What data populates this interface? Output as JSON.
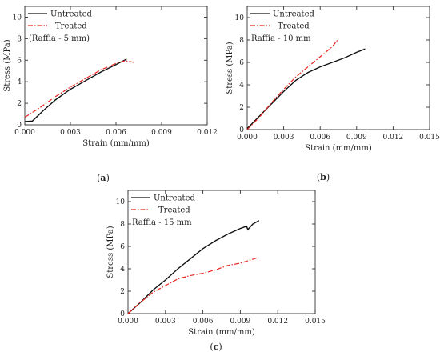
{
  "chart_data": [
    {
      "type": "line",
      "panel_label": "(a)",
      "xlabel": "Strain (mm/mm)",
      "ylabel": "Stress (MPa)",
      "xlim": [
        0,
        0.012
      ],
      "ylim": [
        0,
        11
      ],
      "xticks": [
        "0.000",
        "0.003",
        "0.006",
        "0.009",
        "0.012"
      ],
      "xtick_values": [
        0,
        0.003,
        0.006,
        0.009,
        0.012
      ],
      "yticks": [
        "0",
        "2",
        "4",
        "6",
        "8",
        "10"
      ],
      "ytick_values": [
        0,
        2,
        4,
        6,
        8,
        10
      ],
      "annotation": "(Raffia - 5 mm)",
      "legend_position": "top-left",
      "series": [
        {
          "name": "Untreated",
          "color": "#111111",
          "style": "solid",
          "points": [
            [
              0,
              0.3
            ],
            [
              0.0005,
              0.35
            ],
            [
              0.0012,
              1.3
            ],
            [
              0.002,
              2.3
            ],
            [
              0.003,
              3.3
            ],
            [
              0.004,
              4.1
            ],
            [
              0.005,
              4.9
            ],
            [
              0.006,
              5.6
            ],
            [
              0.0067,
              6.1
            ]
          ]
        },
        {
          "name": "Treated",
          "color": "#e8231d",
          "style": "dash-dot",
          "points": [
            [
              0,
              0.7
            ],
            [
              0.001,
              1.6
            ],
            [
              0.002,
              2.6
            ],
            [
              0.003,
              3.5
            ],
            [
              0.004,
              4.3
            ],
            [
              0.005,
              5.1
            ],
            [
              0.006,
              5.7
            ],
            [
              0.0066,
              5.95
            ],
            [
              0.0072,
              5.8
            ]
          ]
        }
      ]
    },
    {
      "type": "line",
      "panel_label": "(b)",
      "xlabel": "Strain (mm/mm)",
      "ylabel": "Stress (MPa)",
      "xlim": [
        0,
        0.015
      ],
      "ylim": [
        0,
        11
      ],
      "xticks": [
        "0.000",
        "0.003",
        "0.006",
        "0.009",
        "0.012",
        "0.015"
      ],
      "xtick_values": [
        0,
        0.003,
        0.006,
        0.009,
        0.012,
        0.015
      ],
      "yticks": [
        "0",
        "2",
        "4",
        "6",
        "8",
        "10"
      ],
      "ytick_values": [
        0,
        2,
        4,
        6,
        8,
        10
      ],
      "annotation": "Raffia - 10 mm",
      "legend_position": "top-left",
      "series": [
        {
          "name": "Untreated",
          "color": "#111111",
          "style": "solid",
          "points": [
            [
              0,
              0.1
            ],
            [
              0.001,
              1.2
            ],
            [
              0.002,
              2.3
            ],
            [
              0.003,
              3.4
            ],
            [
              0.004,
              4.4
            ],
            [
              0.005,
              5.1
            ],
            [
              0.006,
              5.6
            ],
            [
              0.007,
              6.0
            ],
            [
              0.008,
              6.4
            ],
            [
              0.009,
              6.9
            ],
            [
              0.0097,
              7.2
            ]
          ]
        },
        {
          "name": "Treated",
          "color": "#e8231d",
          "style": "dash-dot",
          "points": [
            [
              0,
              0
            ],
            [
              0.001,
              1.1
            ],
            [
              0.002,
              2.4
            ],
            [
              0.003,
              3.6
            ],
            [
              0.004,
              4.7
            ],
            [
              0.005,
              5.6
            ],
            [
              0.006,
              6.5
            ],
            [
              0.007,
              7.4
            ],
            [
              0.0075,
              8.1
            ]
          ]
        }
      ]
    },
    {
      "type": "line",
      "panel_label": "(c)",
      "xlabel": "Strain (mm/mm)",
      "ylabel": "Stress (MPa)",
      "xlim": [
        0,
        0.015
      ],
      "ylim": [
        0,
        11
      ],
      "xticks": [
        "0.000",
        "0.003",
        "0.006",
        "0.009",
        "0.012",
        "0.015"
      ],
      "xtick_values": [
        0,
        0.003,
        0.006,
        0.009,
        0.012,
        0.015
      ],
      "yticks": [
        "0",
        "2",
        "4",
        "6",
        "8",
        "10"
      ],
      "ytick_values": [
        0,
        2,
        4,
        6,
        8,
        10
      ],
      "annotation": "Raffia - 15 mm",
      "legend_position": "top-left",
      "series": [
        {
          "name": "Untreated",
          "color": "#111111",
          "style": "solid",
          "points": [
            [
              0,
              0
            ],
            [
              0.001,
              1.0
            ],
            [
              0.002,
              2.1
            ],
            [
              0.003,
              3.0
            ],
            [
              0.004,
              4.0
            ],
            [
              0.005,
              4.9
            ],
            [
              0.006,
              5.8
            ],
            [
              0.007,
              6.5
            ],
            [
              0.008,
              7.1
            ],
            [
              0.009,
              7.6
            ],
            [
              0.0095,
              7.8
            ],
            [
              0.0096,
              7.5
            ],
            [
              0.01,
              8.0
            ],
            [
              0.0105,
              8.3
            ]
          ]
        },
        {
          "name": "Treated",
          "color": "#e8231d",
          "style": "dash-dot",
          "points": [
            [
              0,
              0
            ],
            [
              0.001,
              1.0
            ],
            [
              0.002,
              1.9
            ],
            [
              0.003,
              2.5
            ],
            [
              0.004,
              3.1
            ],
            [
              0.005,
              3.4
            ],
            [
              0.006,
              3.6
            ],
            [
              0.007,
              3.9
            ],
            [
              0.008,
              4.3
            ],
            [
              0.009,
              4.5
            ],
            [
              0.0104,
              5.0
            ]
          ]
        }
      ]
    }
  ]
}
